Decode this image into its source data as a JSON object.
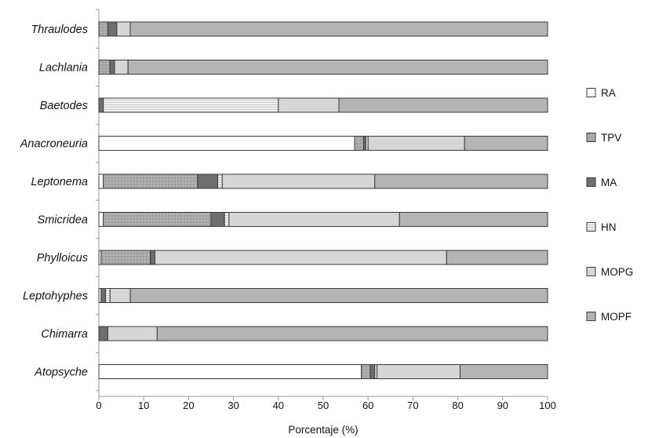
{
  "chart_data": {
    "type": "bar",
    "orientation": "horizontal",
    "stacked": true,
    "title": "",
    "xlabel": "Porcentaje (%)",
    "ylabel": "",
    "xlim": [
      0,
      100
    ],
    "xticks": [
      "0",
      "10",
      "20",
      "30",
      "40",
      "50",
      "60",
      "70",
      "80",
      "90",
      "100"
    ],
    "categories": [
      "Thraulodes",
      "Lachlania",
      "Baetodes",
      "Anacroneuria",
      "Leptonema",
      "Smicridea",
      "Phylloicus",
      "Leptohyphes",
      "Chimarra",
      "Atopsyche"
    ],
    "series": [
      {
        "name": "RA",
        "color": "#ffffff",
        "pattern": "none",
        "values": [
          0,
          0,
          0,
          57,
          1,
          1,
          0.5,
          0.5,
          0,
          58.5
        ]
      },
      {
        "name": "TPV",
        "color": "#a9a9a9",
        "pattern": "dots",
        "values": [
          2,
          2.5,
          0,
          2,
          21,
          24,
          11,
          0,
          0,
          2
        ]
      },
      {
        "name": "MA",
        "color": "#6e6e6e",
        "pattern": "none",
        "values": [
          2,
          1,
          1,
          0.5,
          4.5,
          3,
          1,
          1,
          2,
          1
        ]
      },
      {
        "name": "HN",
        "color": "#ececec",
        "pattern": "hlines",
        "values": [
          0,
          0,
          39,
          0.5,
          1,
          1,
          0,
          1,
          0,
          0.5
        ]
      },
      {
        "name": "MOPG",
        "color": "#d6d6d6",
        "pattern": "none",
        "values": [
          3,
          3,
          13.5,
          21.5,
          34,
          38,
          65,
          4.5,
          11,
          18.5
        ]
      },
      {
        "name": "MOPF",
        "color": "#b4b4b4",
        "pattern": "none",
        "values": [
          93,
          93.5,
          46.5,
          18.5,
          38.5,
          33,
          22.5,
          93,
          87,
          19.5
        ]
      }
    ],
    "legend_position": "right",
    "grid": false
  }
}
